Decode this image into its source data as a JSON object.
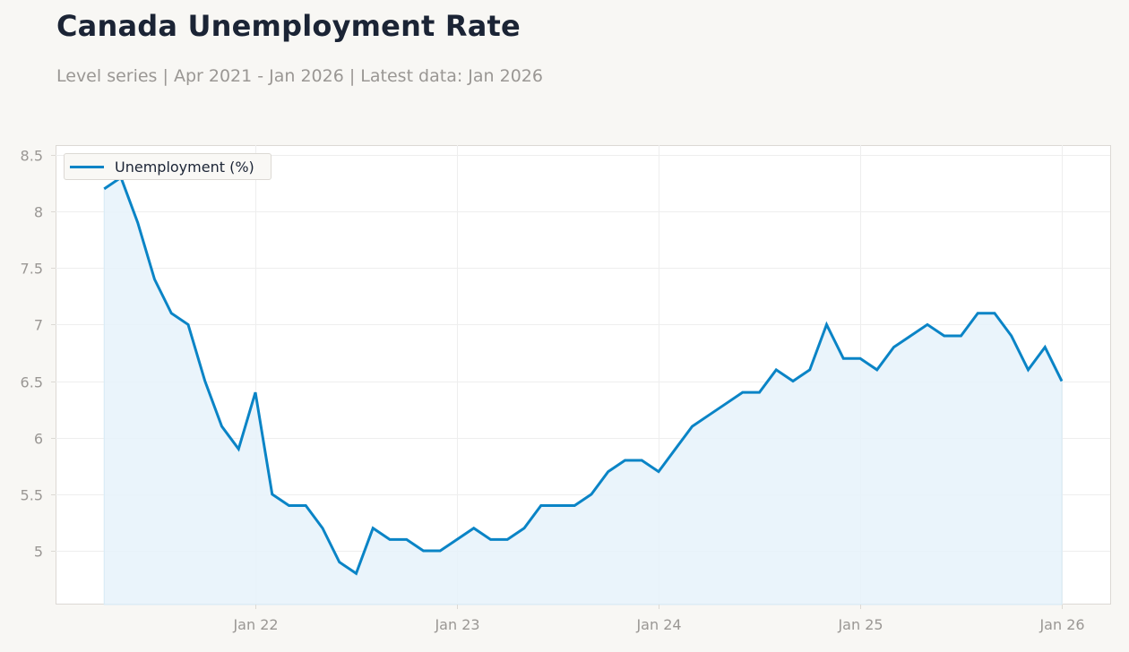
{
  "header": {
    "title": "Canada Unemployment Rate",
    "subtitle": "Level series | Apr 2021 - Jan 2026 | Latest data: Jan 2026"
  },
  "legend": {
    "label": "Unemployment (%)",
    "icon": "line-swatch-icon"
  },
  "colors": {
    "line": "#0a84c6",
    "fill": "#e6f2fa",
    "grid": "#eeeeee",
    "axis": "#dcd9d4",
    "tick_label": "#9a9794",
    "title": "#1b2435",
    "background": "#f8f7f4",
    "plot_background": "#ffffff"
  },
  "chart_data": {
    "type": "area",
    "title": "Canada Unemployment Rate",
    "subtitle": "Level series | Apr 2021 - Jan 2026 | Latest data: Jan 2026",
    "xlabel": "",
    "ylabel": "",
    "ylim": [
      4.525,
      8.587
    ],
    "yticks": [
      5,
      5.5,
      6,
      6.5,
      7,
      7.5,
      8,
      8.5
    ],
    "ytick_labels": [
      "5",
      "5.5",
      "6",
      "6.5",
      "7",
      "7.5",
      "8",
      "8.5"
    ],
    "xtick_labels": [
      "Jan 22",
      "Jan 23",
      "Jan 24",
      "Jan 25",
      "Jan 26"
    ],
    "xtick_month_index": [
      9,
      21,
      33,
      45,
      57
    ],
    "grid": true,
    "legend_position": "upper left",
    "series": [
      {
        "name": "Unemployment (%)",
        "x": [
          "2021-04",
          "2021-05",
          "2021-06",
          "2021-07",
          "2021-08",
          "2021-09",
          "2021-10",
          "2021-11",
          "2021-12",
          "2022-01",
          "2022-02",
          "2022-03",
          "2022-04",
          "2022-05",
          "2022-06",
          "2022-07",
          "2022-08",
          "2022-09",
          "2022-10",
          "2022-11",
          "2022-12",
          "2023-01",
          "2023-02",
          "2023-03",
          "2023-04",
          "2023-05",
          "2023-06",
          "2023-07",
          "2023-08",
          "2023-09",
          "2023-10",
          "2023-11",
          "2023-12",
          "2024-01",
          "2024-02",
          "2024-03",
          "2024-04",
          "2024-05",
          "2024-06",
          "2024-07",
          "2024-08",
          "2024-09",
          "2024-10",
          "2024-11",
          "2024-12",
          "2025-01",
          "2025-02",
          "2025-03",
          "2025-04",
          "2025-05",
          "2025-06",
          "2025-07",
          "2025-08",
          "2025-09",
          "2025-10",
          "2025-11",
          "2025-12",
          "2026-01"
        ],
        "values": [
          8.2,
          8.3,
          7.9,
          7.4,
          7.1,
          7.0,
          6.5,
          6.1,
          5.9,
          6.4,
          5.5,
          5.4,
          5.4,
          5.2,
          4.9,
          4.8,
          5.2,
          5.1,
          5.1,
          5.0,
          5.0,
          5.1,
          5.2,
          5.1,
          5.1,
          5.2,
          5.4,
          5.4,
          5.4,
          5.5,
          5.7,
          5.8,
          5.8,
          5.7,
          5.9,
          6.1,
          6.2,
          6.3,
          6.4,
          6.4,
          6.6,
          6.5,
          6.6,
          7.0,
          6.7,
          6.7,
          6.6,
          6.8,
          6.9,
          7.0,
          6.9,
          6.9,
          7.1,
          7.1,
          6.9,
          6.6,
          6.8,
          6.5
        ]
      }
    ]
  }
}
